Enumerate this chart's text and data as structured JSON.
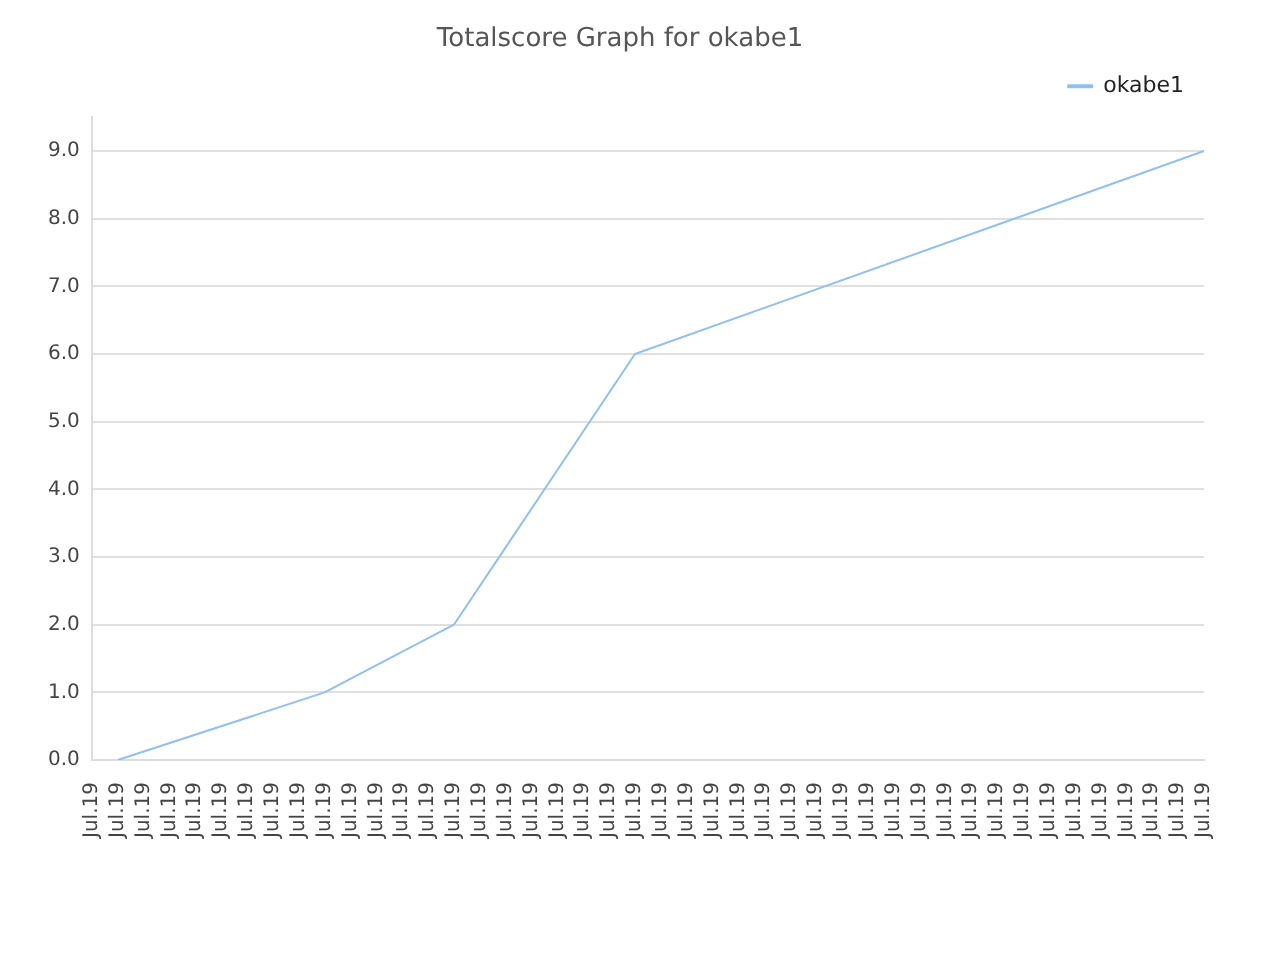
{
  "chart_data": {
    "type": "line",
    "title": "Totalscore Graph for okabe1",
    "categories": [
      "Jul.19",
      "Jul.19",
      "Jul.19",
      "Jul.19",
      "Jul.19",
      "Jul.19",
      "Jul.19",
      "Jul.19",
      "Jul.19",
      "Jul.19",
      "Jul.19",
      "Jul.19",
      "Jul.19",
      "Jul.19",
      "Jul.19",
      "Jul.19",
      "Jul.19",
      "Jul.19",
      "Jul.19",
      "Jul.19",
      "Jul.19",
      "Jul.19",
      "Jul.19",
      "Jul.19",
      "Jul.19",
      "Jul.19",
      "Jul.19",
      "Jul.19",
      "Jul.19",
      "Jul.19",
      "Jul.19",
      "Jul.19",
      "Jul.19",
      "Jul.19",
      "Jul.19",
      "Jul.19",
      "Jul.19",
      "Jul.19",
      "Jul.19",
      "Jul.19",
      "Jul.19",
      "Jul.19",
      "Jul.19",
      "Jul.19"
    ],
    "series": [
      {
        "name": "okabe1",
        "color": "#90c0f0",
        "values": [
          null,
          0,
          null,
          null,
          null,
          null,
          null,
          null,
          null,
          1,
          null,
          null,
          null,
          null,
          2,
          null,
          null,
          null,
          null,
          null,
          null,
          6,
          null,
          null,
          null,
          null,
          null,
          null,
          null,
          null,
          null,
          null,
          null,
          null,
          null,
          null,
          null,
          null,
          null,
          null,
          null,
          null,
          null,
          9
        ]
      }
    ],
    "ylim": [
      0,
      9.5
    ],
    "yticks": [
      {
        "value": 0,
        "label": "0.0"
      },
      {
        "value": 1,
        "label": "1.0"
      },
      {
        "value": 2,
        "label": "2.0"
      },
      {
        "value": 3,
        "label": "3.0"
      },
      {
        "value": 4,
        "label": "4.0"
      },
      {
        "value": 5,
        "label": "5.0"
      },
      {
        "value": 6,
        "label": "6.0"
      },
      {
        "value": 7,
        "label": "7.0"
      },
      {
        "value": 8,
        "label": "8.0"
      },
      {
        "value": 9,
        "label": "9.0"
      }
    ],
    "grid": "y",
    "legend": "top right",
    "marker": "none"
  }
}
